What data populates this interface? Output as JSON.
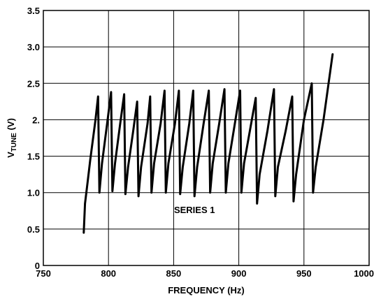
{
  "chart_data": {
    "type": "line",
    "title": "",
    "xlabel": "FREQUENCY (Hz)",
    "ylabel_main": "V",
    "ylabel_sub": "TUNE",
    "ylabel_unit": " (V)",
    "xlim": [
      750,
      1000
    ],
    "ylim": [
      0,
      3.5
    ],
    "x_ticks": [
      750,
      800,
      850,
      900,
      950,
      1000
    ],
    "x_tick_labels": [
      "750",
      "800",
      "850",
      "900",
      "950",
      "1000"
    ],
    "y_ticks": [
      0,
      0.5,
      1.0,
      1.5,
      2.0,
      2.5,
      3.0,
      3.5
    ],
    "y_tick_labels": [
      "0",
      "0.5",
      "1.0",
      "1.5",
      "2.",
      "2.5",
      "3.0",
      "3.5"
    ],
    "grid": true,
    "series": [
      {
        "name": "SERIES 1",
        "color": "#000000",
        "x": [
          781,
          782,
          784,
          786,
          790,
          792,
          793,
          795,
          799,
          802,
          803,
          805,
          809,
          812,
          813,
          815,
          819,
          822,
          823,
          825,
          830,
          832,
          833,
          835,
          840,
          843,
          844,
          846,
          851,
          854,
          855,
          857,
          862,
          865,
          866,
          868,
          873,
          877,
          878,
          880,
          885,
          889,
          890,
          892,
          897,
          901,
          902,
          904,
          909,
          913,
          914,
          916,
          922,
          927,
          928,
          930,
          936,
          941,
          942,
          944,
          950,
          956,
          957,
          959,
          965,
          972
        ],
        "y": [
          0.45,
          0.85,
          1.15,
          1.45,
          2.0,
          2.32,
          1.0,
          1.4,
          1.95,
          2.38,
          1.02,
          1.4,
          1.95,
          2.35,
          0.98,
          1.35,
          1.85,
          2.25,
          0.95,
          1.35,
          1.95,
          2.32,
          1.0,
          1.4,
          1.95,
          2.4,
          1.0,
          1.4,
          1.95,
          2.4,
          0.98,
          1.35,
          1.95,
          2.4,
          0.95,
          1.35,
          1.95,
          2.4,
          1.0,
          1.4,
          1.95,
          2.42,
          1.0,
          1.4,
          1.95,
          2.4,
          1.0,
          1.4,
          1.9,
          2.3,
          0.85,
          1.25,
          1.85,
          2.42,
          0.95,
          1.35,
          1.85,
          2.32,
          0.88,
          1.25,
          2.0,
          2.5,
          1.0,
          1.35,
          2.0,
          2.9
        ]
      }
    ],
    "series_label_position": {
      "x": 866,
      "y": 0.72
    }
  }
}
